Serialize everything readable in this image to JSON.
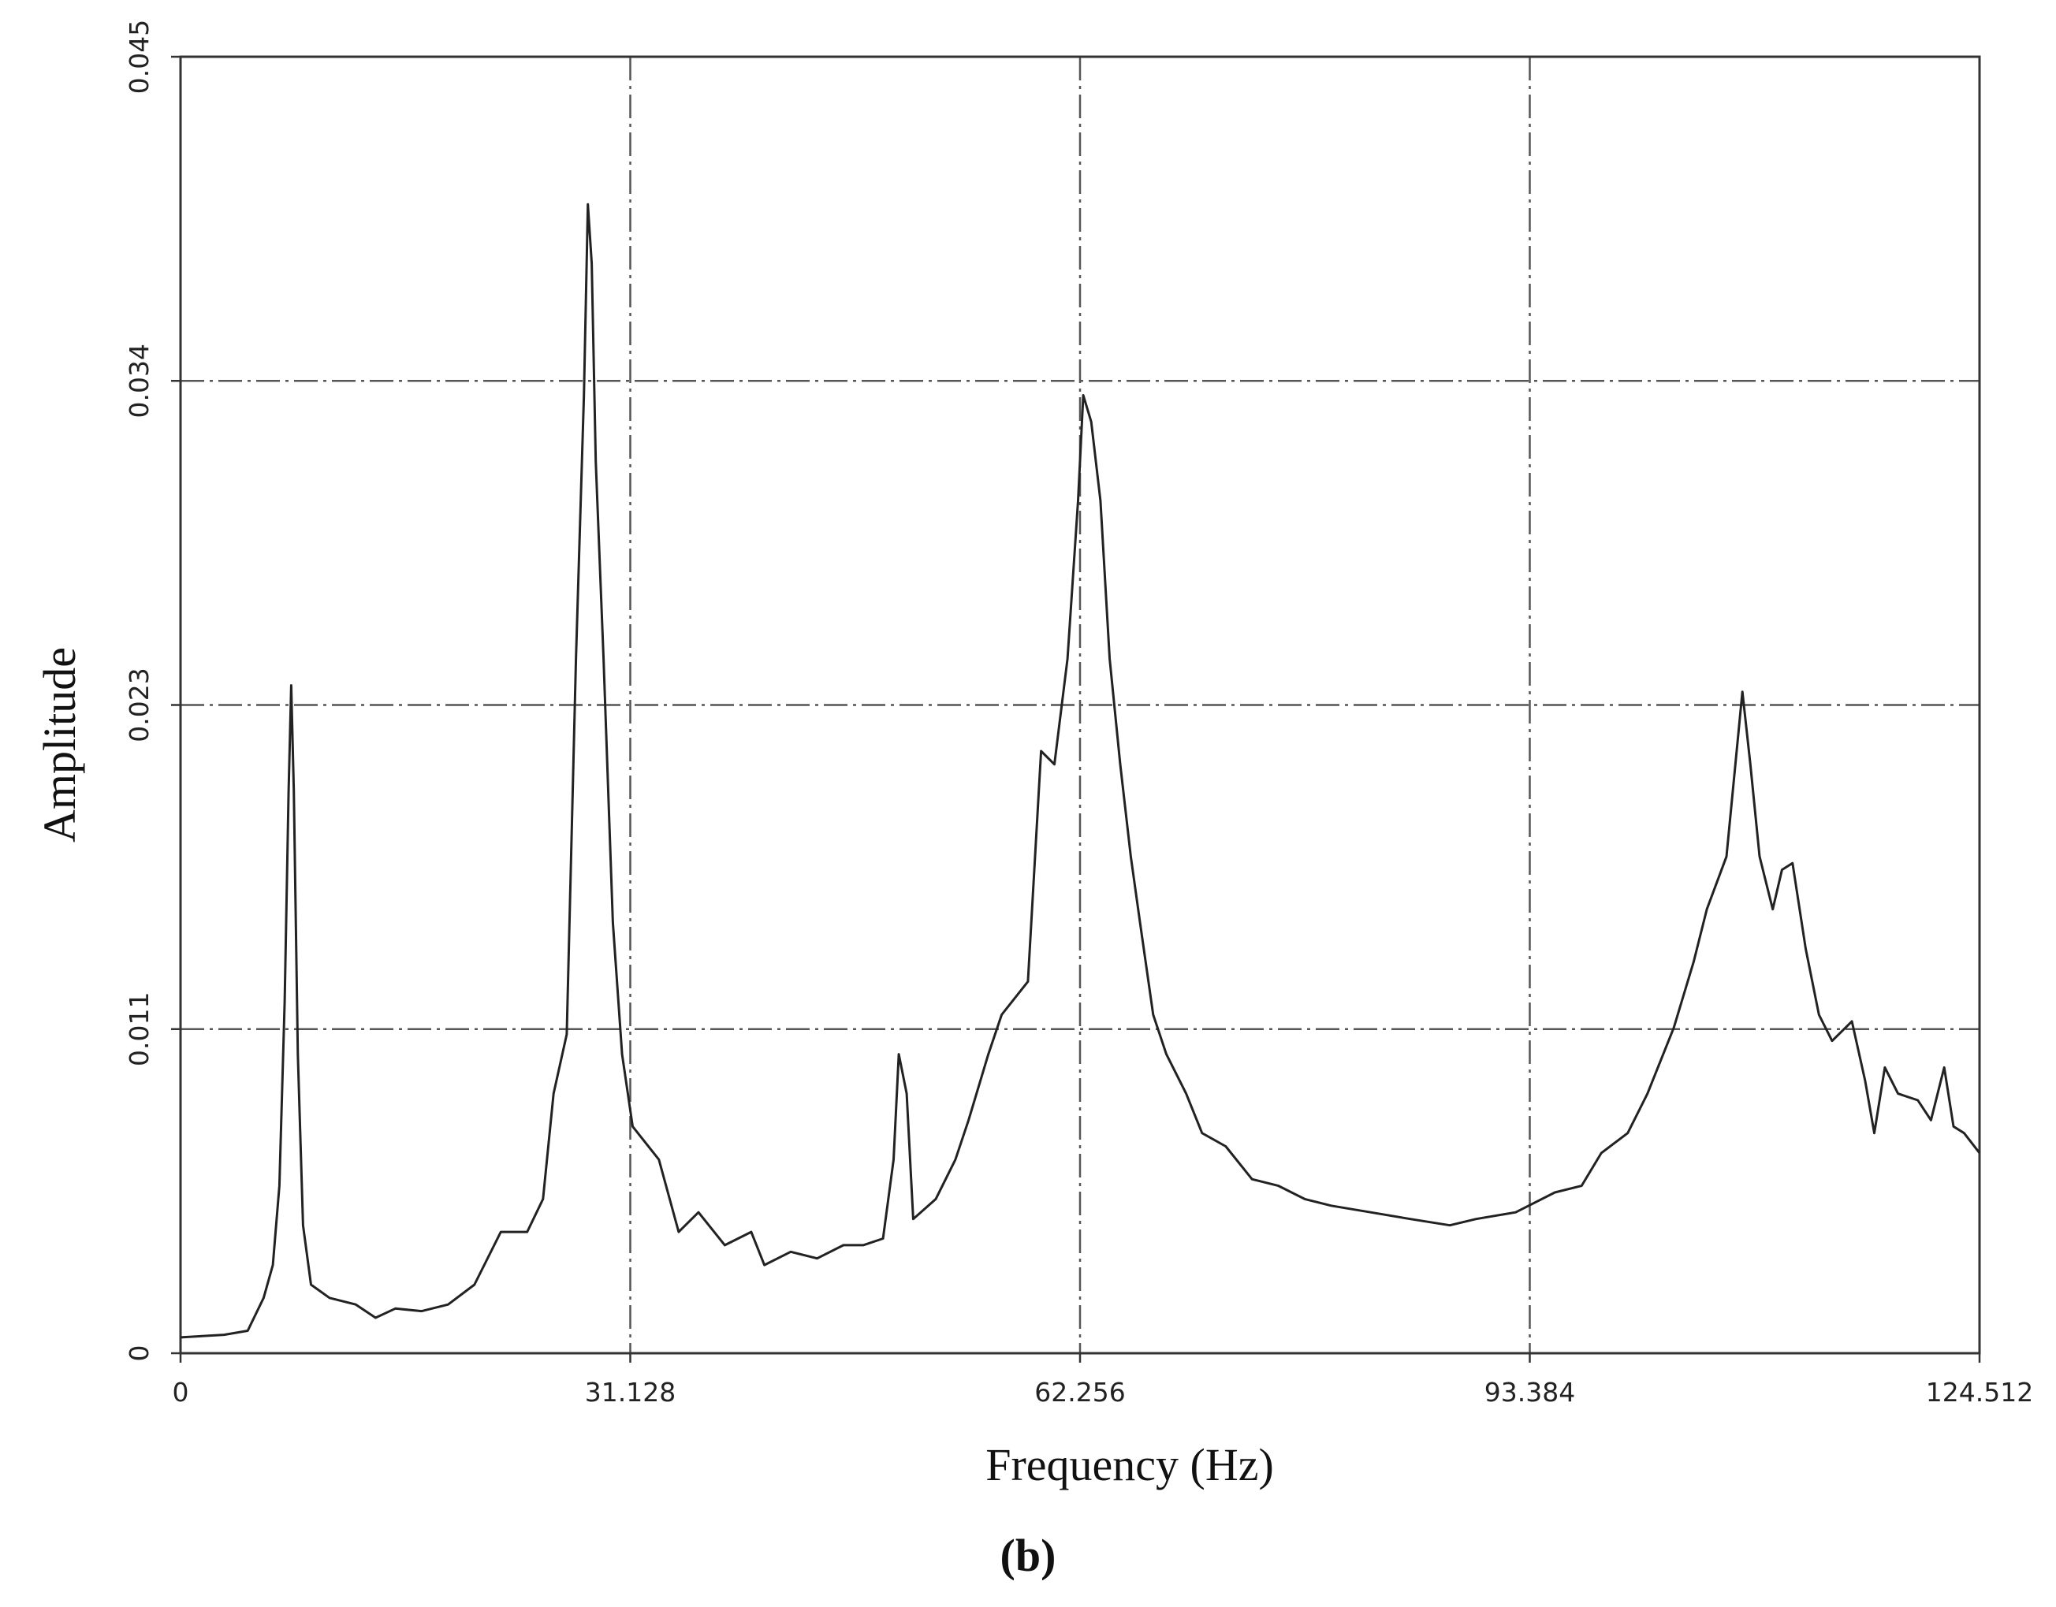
{
  "chart_data": {
    "type": "line",
    "label": "(b)",
    "x_label": "Frequency (Hz)",
    "y_label": "Amplitude",
    "xlim": [
      0,
      124.512
    ],
    "xticks": [
      0,
      31.128,
      62.256,
      93.384,
      124.512
    ],
    "ylim": [
      0,
      0.045
    ],
    "yticks": [
      0,
      {
        "value": 0.01125,
        "label": "0.011"
      },
      {
        "value": 0.0225,
        "label": "0.023"
      },
      {
        "value": 0.03375,
        "label": "0.034"
      },
      0.045
    ],
    "grid": true,
    "color": "#222222",
    "x": [
      0,
      3.01,
      4.65,
      5.75,
      6.39,
      6.84,
      7.21,
      7.48,
      7.66,
      7.84,
      8.12,
      8.48,
      9.03,
      10.31,
      12.13,
      13.5,
      14.87,
      16.69,
      18.52,
      20.34,
      22.17,
      23.99,
      25.09,
      25.82,
      26.73,
      27.37,
      27.92,
      28.19,
      28.46,
      28.74,
      29.28,
      29.92,
      30.56,
      31.29,
      33.11,
      34.48,
      35.85,
      37.67,
      39.5,
      40.41,
      42.23,
      44.06,
      45.88,
      47.25,
      48.62,
      49.35,
      49.71,
      50.26,
      50.71,
      52.27,
      53.63,
      54.54,
      55.91,
      56.83,
      58.65,
      59.56,
      60.48,
      61.39,
      62.12,
      62.48,
      63.03,
      63.67,
      64.31,
      65.04,
      65.77,
      66.41,
      67.32,
      68.23,
      69.6,
      70.7,
      72.34,
      74.16,
      75.99,
      77.81,
      79.64,
      82.37,
      85.11,
      87.85,
      89.67,
      92.41,
      95.12,
      96.97,
      98.34,
      100.16,
      101.53,
      103.35,
      104.72,
      105.64,
      107.0,
      108.1,
      108.65,
      109.29,
      110.2,
      110.84,
      111.57,
      112.48,
      113.4,
      114.31,
      115.68,
      116.59,
      117.23,
      117.96,
      118.87,
      120.24,
      121.15,
      122.07,
      122.71,
      123.44,
      124.51
    ],
    "values": [
      0.00055,
      0.00064,
      0.00078,
      0.00192,
      0.00306,
      0.00581,
      0.01221,
      0.01953,
      0.02318,
      0.01953,
      0.01038,
      0.00444,
      0.00238,
      0.00192,
      0.00169,
      0.00123,
      0.00155,
      0.00146,
      0.00169,
      0.00238,
      0.00421,
      0.00421,
      0.00535,
      0.00901,
      0.01107,
      0.0241,
      0.03325,
      0.03988,
      0.03782,
      0.03096,
      0.0241,
      0.01495,
      0.01038,
      0.00787,
      0.00672,
      0.00421,
      0.00489,
      0.00375,
      0.00421,
      0.00306,
      0.00352,
      0.00329,
      0.00375,
      0.00375,
      0.00398,
      0.00672,
      0.01038,
      0.00901,
      0.00466,
      0.00535,
      0.00672,
      0.00809,
      0.01038,
      0.01175,
      0.0129,
      0.0209,
      0.02044,
      0.0241,
      0.02959,
      0.03325,
      0.03233,
      0.02959,
      0.0241,
      0.02044,
      0.01724,
      0.01495,
      0.01175,
      0.01038,
      0.00901,
      0.00764,
      0.00718,
      0.00604,
      0.00581,
      0.00535,
      0.00512,
      0.00489,
      0.00466,
      0.00444,
      0.00466,
      0.00489,
      0.00558,
      0.00581,
      0.00695,
      0.00764,
      0.00901,
      0.0113,
      0.01358,
      0.01541,
      0.01724,
      0.02296,
      0.02044,
      0.01724,
      0.01541,
      0.01678,
      0.01701,
      0.01404,
      0.01175,
      0.01084,
      0.01152,
      0.00947,
      0.00764,
      0.00992,
      0.00901,
      0.00878,
      0.00809,
      0.00992,
      0.00787,
      0.00764,
      0.00695
    ]
  }
}
